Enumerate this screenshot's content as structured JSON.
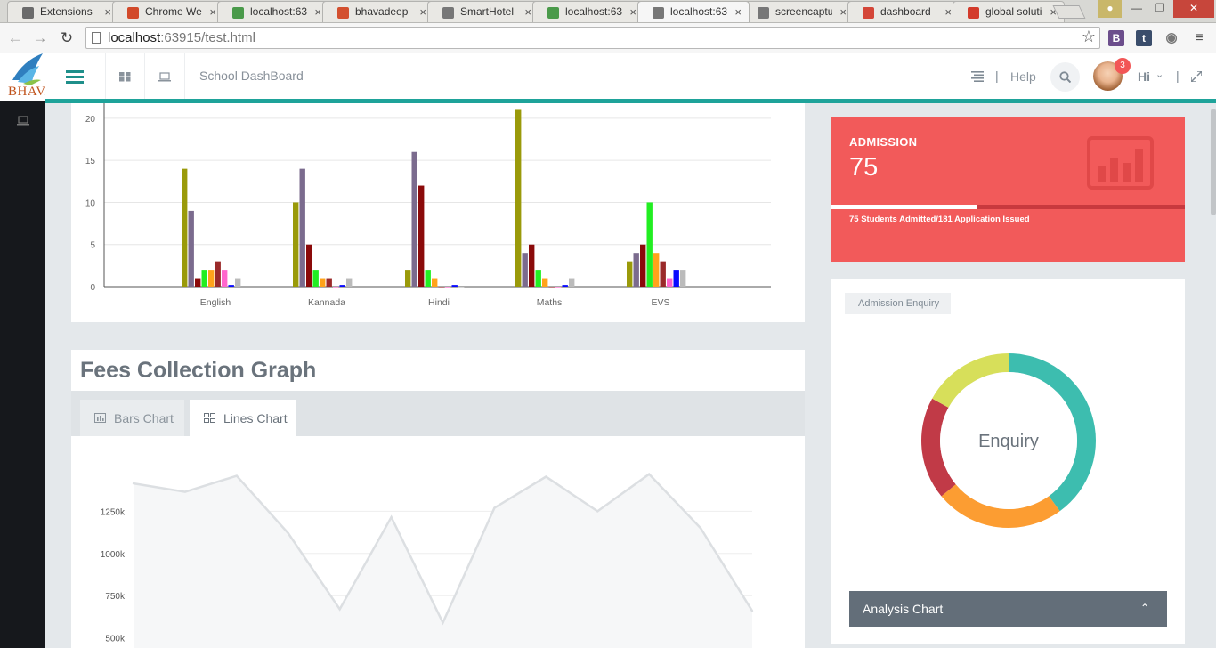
{
  "browser": {
    "tabs": [
      {
        "label": "Extensions",
        "icon": "puzzle-icon",
        "color": "#6b6b6b"
      },
      {
        "label": "Chrome We",
        "icon": "chrome-store-icon",
        "color": "#d24a2a"
      },
      {
        "label": "localhost:63",
        "icon": "leaf-icon",
        "color": "#4a9a4a"
      },
      {
        "label": "bhavadeep",
        "icon": "pause-bars-icon",
        "color": "#d3502f"
      },
      {
        "label": "SmartHotel",
        "icon": "document-icon",
        "color": "#777777"
      },
      {
        "label": "localhost:63",
        "icon": "leaf-icon",
        "color": "#4a9a4a"
      },
      {
        "label": "localhost:63",
        "icon": "document-icon",
        "color": "#777777",
        "active": true
      },
      {
        "label": "screencaptu",
        "icon": "document-icon",
        "color": "#777777"
      },
      {
        "label": "dashboard",
        "icon": "gmail-icon",
        "color": "#d44638"
      },
      {
        "label": "global soluti",
        "icon": "red-diamond-icon",
        "color": "#d33b2b"
      }
    ],
    "url_host": "localhost",
    "url_path": ":63915/test.html",
    "extensions": [
      {
        "label": "B",
        "color": "#6c4e8c"
      },
      {
        "label": "t",
        "color": "#3a4d6b"
      }
    ]
  },
  "app": {
    "logo_text": "BHAVA",
    "page_title": "School DashBoard",
    "help_label": "Help",
    "notification_count": "3",
    "greeting": "Hi"
  },
  "bar_chart": {
    "chart_data": {
      "type": "bar",
      "categories": [
        "English",
        "Kannada",
        "Hindi",
        "Maths",
        "EVS"
      ],
      "y_ticks": [
        "0",
        "5",
        "10",
        "15",
        "20"
      ],
      "ylim": [
        0,
        22
      ],
      "grid": true,
      "series": [
        {
          "color": "#9a9a0a",
          "values": [
            14,
            10,
            2,
            21,
            3
          ]
        },
        {
          "color": "#7b6b8e",
          "values": [
            9,
            14,
            16,
            4,
            4
          ]
        },
        {
          "color": "#8b0a0a",
          "values": [
            1,
            5,
            12,
            5,
            5
          ]
        },
        {
          "color": "#22ee22",
          "values": [
            2,
            2,
            2,
            2,
            10
          ]
        },
        {
          "color": "#ffa31a",
          "values": [
            2,
            1,
            1,
            1,
            4
          ]
        },
        {
          "color": "#9a2a2a",
          "values": [
            3,
            1,
            0,
            0,
            3
          ]
        },
        {
          "color": "#ff66cc",
          "values": [
            2,
            0,
            0,
            0,
            1
          ]
        },
        {
          "color": "#0a0aff",
          "values": [
            0.2,
            0.2,
            0.2,
            0.2,
            2
          ]
        },
        {
          "color": "#bbbbbb",
          "values": [
            1,
            1,
            0,
            1,
            2
          ]
        }
      ]
    }
  },
  "fees": {
    "title": "Fees Collection Graph",
    "tabs": {
      "bars": "Bars Chart",
      "lines": "Lines Chart"
    },
    "chart_data": {
      "type": "area",
      "y_ticks": [
        "500k",
        "750k",
        "1000k",
        "1250k"
      ],
      "ylim": [
        440000,
        1500000
      ],
      "x": [
        1,
        2,
        3,
        4,
        5,
        6,
        7,
        8,
        9,
        10,
        11,
        12,
        13
      ],
      "values": [
        1415000,
        1365000,
        1460000,
        1120000,
        670000,
        1215000,
        590000,
        1270000,
        1455000,
        1250000,
        1470000,
        1150000,
        660000
      ]
    }
  },
  "admission": {
    "title": "ADMISSION",
    "value": "75",
    "description": "75 Students Admitted/181 Application Issued",
    "progress": 0.41,
    "color": "#f25a5a"
  },
  "enquiry": {
    "tag": "Admission Enquiry",
    "center_label": "Enquiry",
    "chart_data": {
      "type": "pie",
      "slices": [
        {
          "value": 40,
          "color": "#3dbdaf"
        },
        {
          "value": 24,
          "color": "#fc9d32"
        },
        {
          "value": 19,
          "color": "#c13a47"
        },
        {
          "value": 17,
          "color": "#d7df5a"
        }
      ]
    },
    "analysis_label": "Analysis Chart"
  }
}
